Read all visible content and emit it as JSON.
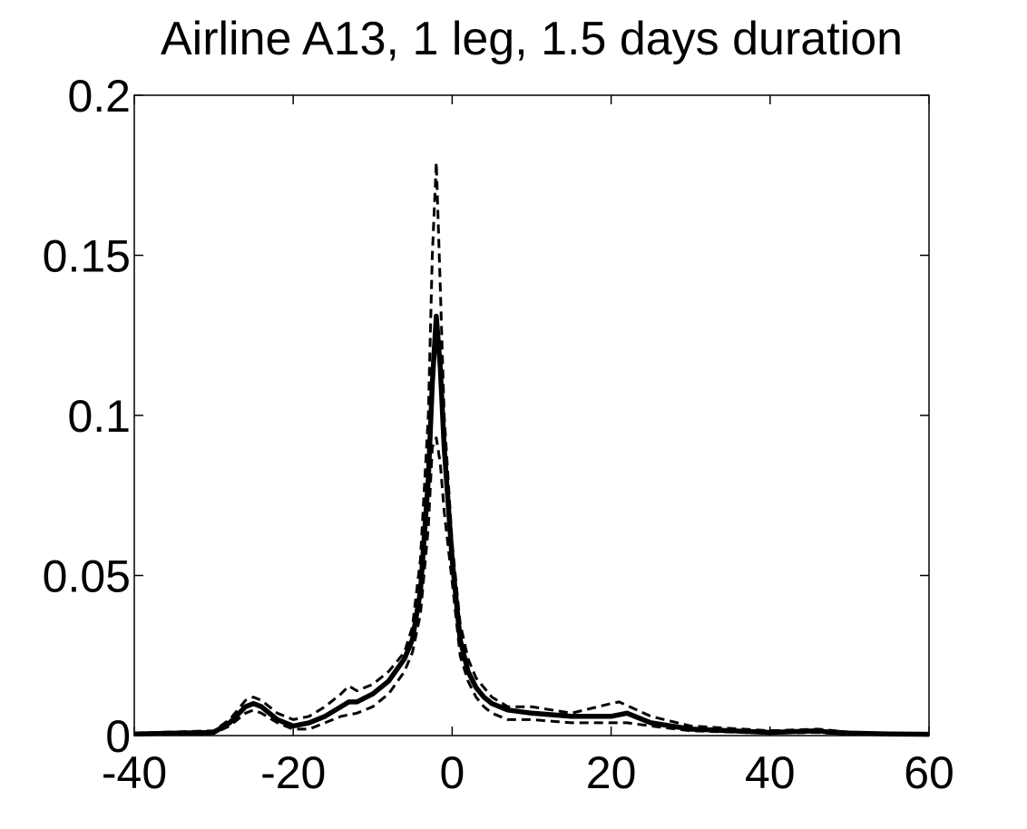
{
  "chart_data": {
    "type": "line",
    "title": "Airline A13, 1 leg, 1.5 days duration",
    "xlabel": "",
    "ylabel": "",
    "xlim": [
      -40,
      60
    ],
    "ylim": [
      0,
      0.2
    ],
    "xticks": [
      -40,
      -20,
      0,
      20,
      40,
      60
    ],
    "xtick_labels": [
      "-40",
      "-20",
      "0",
      "20",
      "40",
      "60"
    ],
    "yticks": [
      0,
      0.05,
      0.1,
      0.15,
      0.2
    ],
    "ytick_labels": [
      "0",
      "0.05",
      "0.1",
      "0.15",
      "0.2"
    ],
    "grid": false,
    "legend": "none",
    "series": [
      {
        "style": "solid",
        "x": [
          -40,
          -30,
          -28,
          -26,
          -25,
          -24,
          -22,
          -20,
          -18,
          -16,
          -14,
          -13,
          -12,
          -10,
          -8,
          -6,
          -5,
          -4,
          -3,
          -2.5,
          -2,
          -1.5,
          -1,
          0,
          1,
          2,
          3,
          4,
          5,
          7,
          10,
          15,
          20,
          22,
          25,
          30,
          40,
          46,
          47,
          50,
          55,
          60
        ],
        "y": [
          0.0005,
          0.001,
          0.004,
          0.009,
          0.01,
          0.009,
          0.005,
          0.003,
          0.004,
          0.006,
          0.009,
          0.0105,
          0.0105,
          0.013,
          0.017,
          0.024,
          0.03,
          0.045,
          0.08,
          0.11,
          0.131,
          0.115,
          0.09,
          0.055,
          0.03,
          0.02,
          0.015,
          0.012,
          0.01,
          0.008,
          0.007,
          0.006,
          0.006,
          0.007,
          0.004,
          0.002,
          0.001,
          0.0015,
          0.0012,
          0.0008,
          0.0005,
          0.0004
        ]
      },
      {
        "style": "dashed",
        "x": [
          -40,
          -30,
          -28,
          -26,
          -25,
          -24,
          -22,
          -20,
          -18,
          -16,
          -14,
          -13,
          -12,
          -10,
          -8,
          -6,
          -5,
          -4,
          -3,
          -2.5,
          -2,
          -1.5,
          -1,
          0,
          1,
          2,
          3,
          4,
          5,
          7,
          10,
          15,
          20,
          21,
          25,
          30,
          40,
          46,
          47,
          50,
          55,
          60
        ],
        "y": [
          0.0008,
          0.0015,
          0.005,
          0.011,
          0.012,
          0.011,
          0.007,
          0.005,
          0.006,
          0.009,
          0.013,
          0.0155,
          0.014,
          0.016,
          0.02,
          0.026,
          0.034,
          0.055,
          0.1,
          0.15,
          0.179,
          0.14,
          0.1,
          0.06,
          0.035,
          0.024,
          0.018,
          0.015,
          0.012,
          0.009,
          0.009,
          0.007,
          0.01,
          0.0105,
          0.006,
          0.003,
          0.0015,
          0.002,
          0.0018,
          0.001,
          0.0008,
          0.0005
        ]
      },
      {
        "style": "dashed",
        "x": [
          -40,
          -30,
          -28,
          -26,
          -25,
          -24,
          -22,
          -20,
          -18,
          -16,
          -14,
          -13,
          -12,
          -10,
          -8,
          -6,
          -5,
          -4,
          -3,
          -2.5,
          -2,
          -1.5,
          -1,
          0,
          1,
          2,
          3,
          4,
          5,
          7,
          10,
          15,
          20,
          22,
          25,
          30,
          40,
          46,
          47,
          50,
          55,
          60
        ],
        "y": [
          0.0003,
          0.0007,
          0.003,
          0.007,
          0.008,
          0.007,
          0.004,
          0.002,
          0.002,
          0.004,
          0.006,
          0.0065,
          0.007,
          0.009,
          0.013,
          0.02,
          0.026,
          0.038,
          0.065,
          0.09,
          0.093,
          0.085,
          0.07,
          0.048,
          0.025,
          0.017,
          0.012,
          0.009,
          0.007,
          0.005,
          0.005,
          0.004,
          0.004,
          0.004,
          0.003,
          0.0015,
          0.0007,
          0.001,
          0.0008,
          0.0005,
          0.0003,
          0.0002
        ]
      }
    ]
  }
}
